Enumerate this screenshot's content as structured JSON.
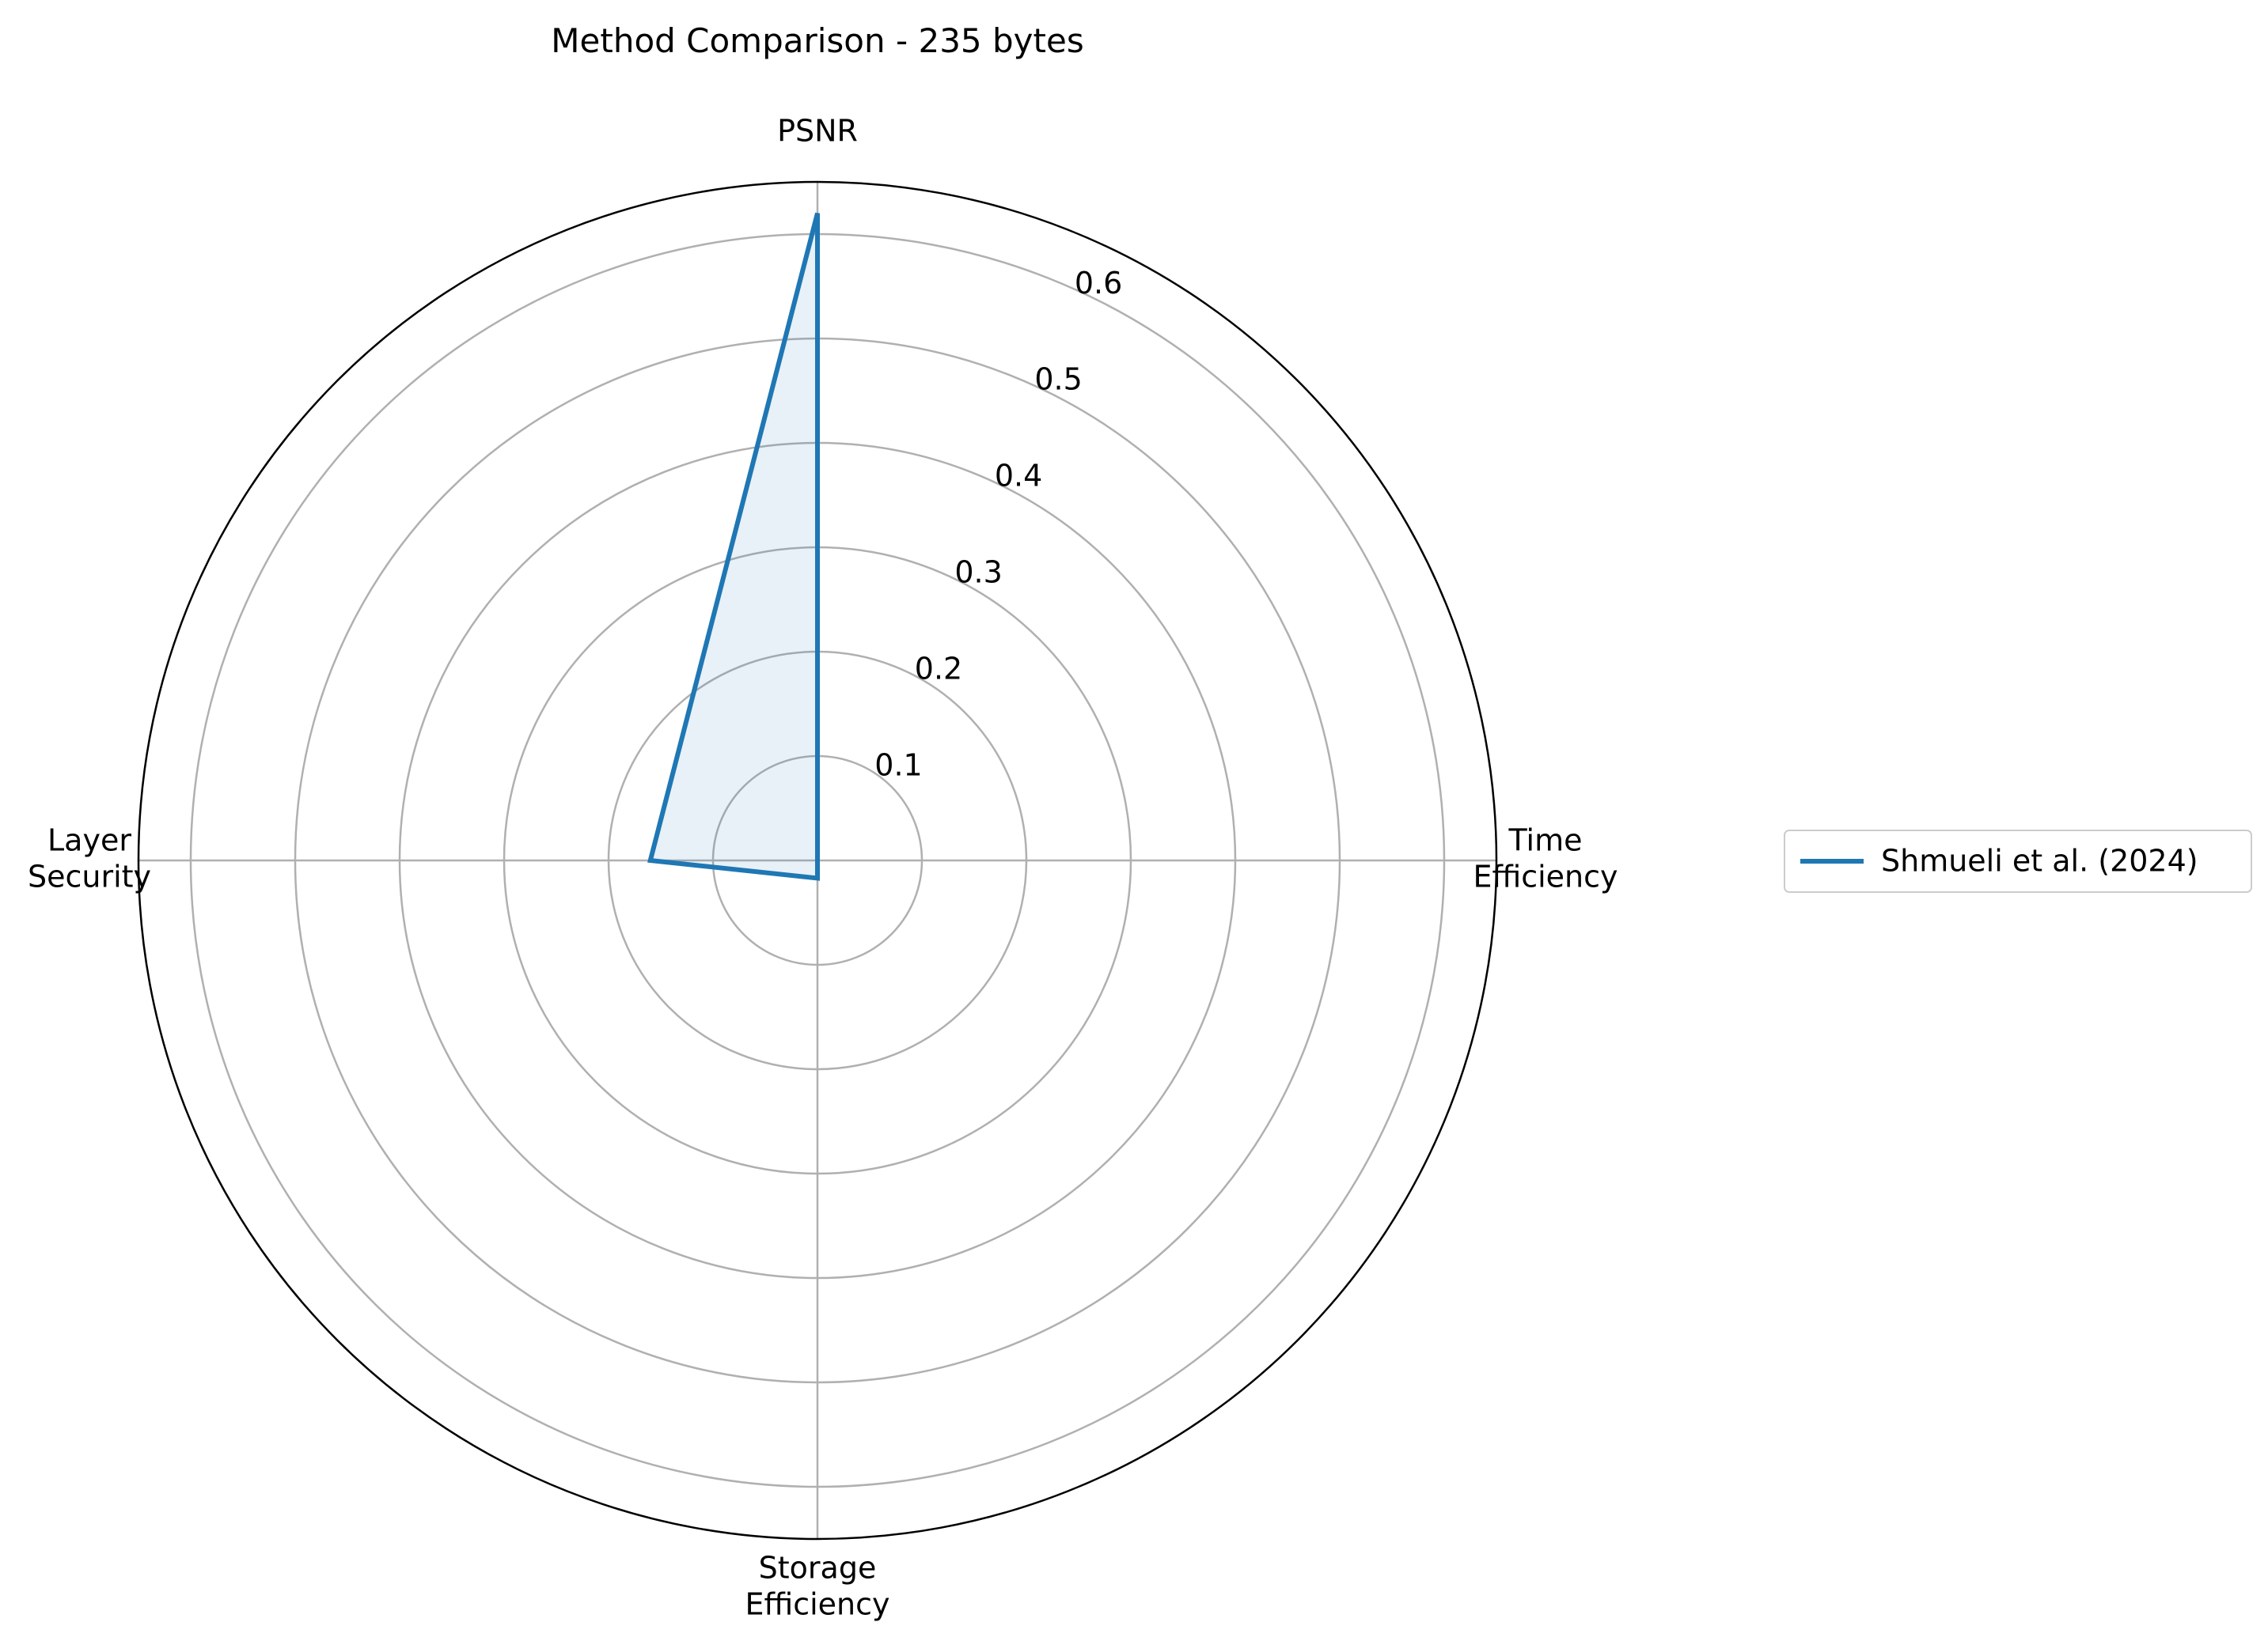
{
  "chart_data": {
    "type": "radar",
    "title": "Method Comparison - 235 bytes",
    "axes": [
      "PSNR",
      "Time\nEfficiency",
      "Storage\nEfficiency",
      "Layer\nSecurity"
    ],
    "rlim": [
      0,
      0.65
    ],
    "r_ticks": [
      0.1,
      0.2,
      0.3,
      0.4,
      0.5,
      0.6
    ],
    "r_tick_labels": [
      "0.1",
      "0.2",
      "0.3",
      "0.4",
      "0.5",
      "0.6"
    ],
    "grid": true,
    "legend_position": "right",
    "series": [
      {
        "name": "Shmueli et al. (2024)",
        "color": "#1f77b4",
        "values": [
          0.62,
          0.0,
          0.017,
          0.16
        ]
      }
    ]
  }
}
